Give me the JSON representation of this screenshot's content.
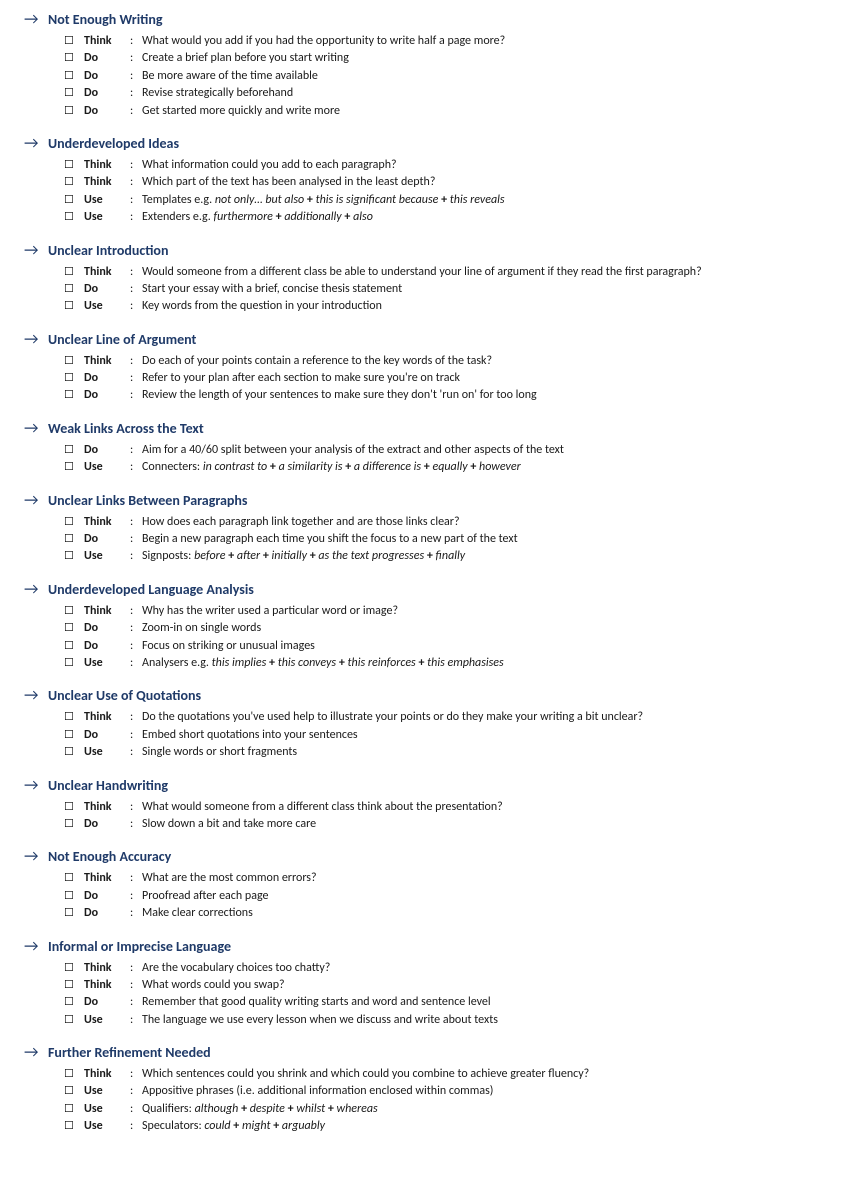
{
  "colors": {
    "heading": "#1f3a68",
    "text": "#1a1a1a",
    "background": "#ffffff"
  },
  "arrow_glyph": "→",
  "checkbox_glyph": "☐",
  "sections": [
    {
      "title": "Not Enough Writing",
      "items": [
        {
          "action": "Think",
          "desc": "What would you add if you had the opportunity to write half a page more?"
        },
        {
          "action": "Do",
          "desc": "Create a brief plan before you start writing"
        },
        {
          "action": "Do",
          "desc": "Be more aware of the time available"
        },
        {
          "action": "Do",
          "desc": "Revise strategically beforehand"
        },
        {
          "action": "Do",
          "desc": "Get started more quickly and write more"
        }
      ]
    },
    {
      "title": "Underdeveloped Ideas",
      "items": [
        {
          "action": "Think",
          "desc": "What information could you add to each paragraph?"
        },
        {
          "action": "Think",
          "desc": "Which part of the text has been analysed in the least depth?"
        },
        {
          "action": "Use",
          "desc": "Templates e.g. <em>not only… but also</em> <span class='plus'>+</span> <em>this is significant because</em> <span class='plus'>+</span> <em>this reveals</em>"
        },
        {
          "action": "Use",
          "desc": "Extenders e.g. <em>furthermore</em> <span class='plus'>+</span> <em>additionally</em> <span class='plus'>+</span> <em>also</em>"
        }
      ]
    },
    {
      "title": "Unclear Introduction",
      "items": [
        {
          "action": "Think",
          "desc": "Would someone from a different class be able to understand your line of argument if they read the first paragraph?"
        },
        {
          "action": "Do",
          "desc": "Start your essay with a brief, concise thesis statement"
        },
        {
          "action": "Use",
          "desc": "Key words from the question in your introduction"
        }
      ]
    },
    {
      "title": "Unclear Line of Argument",
      "items": [
        {
          "action": "Think",
          "desc": "Do each of your points contain a reference to the key words of the task?"
        },
        {
          "action": "Do",
          "desc": "Refer to your plan after each section to make sure you're on track"
        },
        {
          "action": "Do",
          "desc": "Review the length of your sentences to make sure they don't 'run on' for too long"
        }
      ]
    },
    {
      "title": "Weak Links Across the Text",
      "items": [
        {
          "action": "Do",
          "desc": "Aim for a 40/60 split between your analysis of the extract and other aspects of the text"
        },
        {
          "action": "Use",
          "desc": "Connecters: <em>in contrast to</em> <span class='plus'>+</span> <em>a similarity is</em> <span class='plus'>+</span> <em>a difference is</em> <span class='plus'>+</span> <em>equally</em> <span class='plus'>+</span> <em>however</em>"
        }
      ]
    },
    {
      "title": "Unclear Links Between Paragraphs",
      "items": [
        {
          "action": "Think",
          "desc": "How does each paragraph link together and are those links clear?"
        },
        {
          "action": "Do",
          "desc": "Begin a new paragraph each time you shift the focus to a new part of the text"
        },
        {
          "action": "Use",
          "desc": "Signposts: <em>before</em> <span class='plus'>+</span> <em>after</em> <span class='plus'>+</span> <em>initially</em> <span class='plus'>+</span> <em>as the text progresses</em> <span class='plus'>+</span> <em>finally</em>"
        }
      ]
    },
    {
      "title": "Underdeveloped Language Analysis",
      "items": [
        {
          "action": "Think",
          "desc": "Why has the writer used a particular word or image?"
        },
        {
          "action": "Do",
          "desc": "Zoom-in on single words"
        },
        {
          "action": "Do",
          "desc": "Focus on striking or unusual images"
        },
        {
          "action": "Use",
          "desc": "Analysers e.g. <em>this implies</em> <span class='plus'>+</span> <em>this conveys</em> <span class='plus'>+</span> <em>this reinforces</em> <span class='plus'>+</span> <em>this emphasises</em>"
        }
      ]
    },
    {
      "title": "Unclear Use of Quotations",
      "items": [
        {
          "action": "Think",
          "desc": "Do the quotations you've used help to illustrate your points or do they make your writing a bit unclear?"
        },
        {
          "action": "Do",
          "desc": "Embed short quotations into your sentences"
        },
        {
          "action": "Use",
          "desc": "Single words or short fragments"
        }
      ]
    },
    {
      "title": "Unclear Handwriting",
      "items": [
        {
          "action": "Think",
          "desc": "What would someone from a different class think about the presentation?"
        },
        {
          "action": "Do",
          "desc": "Slow down a bit and take more care"
        }
      ]
    },
    {
      "title": "Not Enough Accuracy",
      "items": [
        {
          "action": "Think",
          "desc": "What are the most common errors?"
        },
        {
          "action": "Do",
          "desc": "Proofread after each page"
        },
        {
          "action": "Do",
          "desc": "Make clear corrections"
        }
      ]
    },
    {
      "title": "Informal or Imprecise Language",
      "items": [
        {
          "action": "Think",
          "desc": "Are the vocabulary choices too chatty?"
        },
        {
          "action": "Think",
          "desc": "What words could you swap?"
        },
        {
          "action": "Do",
          "desc": "Remember that good quality writing starts and word and sentence level"
        },
        {
          "action": "Use",
          "desc": "The language we use every lesson when we discuss and write about texts"
        }
      ]
    },
    {
      "title": "Further Refinement Needed",
      "items": [
        {
          "action": "Think",
          "desc": "Which sentences could you shrink and which could you combine to achieve greater fluency?"
        },
        {
          "action": "Use",
          "desc": "Appositive phrases (i.e. additional information enclosed within commas)"
        },
        {
          "action": "Use",
          "desc": "Qualifiers: <em>although</em> <span class='plus'>+</span> <em>despite</em> <span class='plus'>+</span> <em>whilst</em> <span class='plus'>+</span> <em>whereas</em>"
        },
        {
          "action": "Use",
          "desc": "Speculators: <em>could</em> <span class='plus'>+</span> <em>might</em> <span class='plus'>+</span> <em>arguably</em>"
        }
      ]
    }
  ]
}
